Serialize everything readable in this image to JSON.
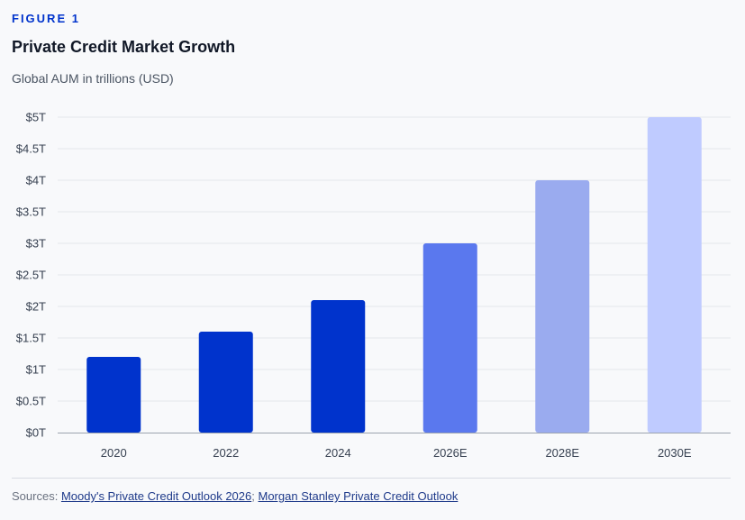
{
  "figure_label": "FIGURE 1",
  "chart_data": {
    "type": "bar",
    "title": "Private Credit Market Growth",
    "subtitle": "Global AUM in trillions (USD)",
    "xlabel": "",
    "ylabel": "",
    "categories": [
      "2020",
      "2022",
      "2024",
      "2026E",
      "2028E",
      "2030E"
    ],
    "values": [
      1.2,
      1.6,
      2.1,
      3.0,
      4.0,
      5.0
    ],
    "bar_colors": [
      "#0033cc",
      "#0033cc",
      "#0033cc",
      "#5a78ee",
      "#9aabef",
      "#bfcbff"
    ],
    "ylim": [
      0,
      5
    ],
    "yticks": [
      0,
      0.5,
      1,
      1.5,
      2,
      2.5,
      3,
      3.5,
      4,
      4.5,
      5
    ],
    "ytick_labels": [
      "$0T",
      "$0.5T",
      "$1T",
      "$1.5T",
      "$2T",
      "$2.5T",
      "$3T",
      "$3.5T",
      "$4T",
      "$4.5T",
      "$5T"
    ],
    "grid": true,
    "legend": "none"
  },
  "sources": {
    "prefix": "Sources:",
    "links": [
      {
        "label": "Moody's Private Credit Outlook 2026"
      },
      {
        "label": "Morgan Stanley Private Credit Outlook"
      }
    ],
    "separator": ";"
  },
  "colors": {
    "accent": "#0033cc",
    "grid": "#e5e7eb",
    "axis": "#9ca3af",
    "tick_text": "#374151"
  }
}
